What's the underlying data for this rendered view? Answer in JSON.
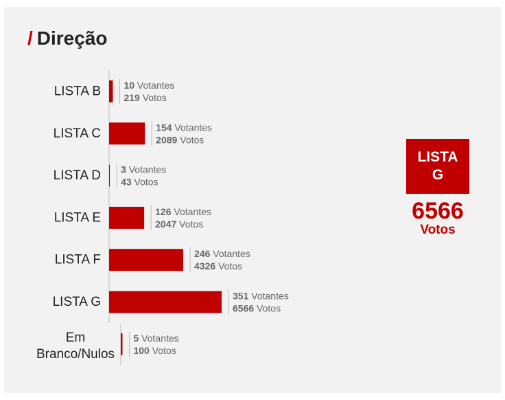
{
  "title": "Direção",
  "title_prefix": "/",
  "colors": {
    "bar": "#c00000",
    "accent": "#cc0000",
    "label": "#222222",
    "annotation": "#666666",
    "background": "#f2f2f2"
  },
  "chart_data": {
    "type": "bar",
    "orientation": "horizontal",
    "categories": [
      "LISTA B",
      "LISTA C",
      "LISTA D",
      "LISTA E",
      "LISTA F",
      "LISTA G",
      "Em Branco/Nulos"
    ],
    "category_lines": [
      [
        "LISTA B"
      ],
      [
        "LISTA C"
      ],
      [
        "LISTA D"
      ],
      [
        "LISTA E"
      ],
      [
        "LISTA F"
      ],
      [
        "LISTA G"
      ],
      [
        "Em",
        "Branco/Nulos"
      ]
    ],
    "voters": [
      10,
      154,
      3,
      126,
      246,
      351,
      5
    ],
    "values": [
      219,
      2089,
      43,
      2047,
      4326,
      6566,
      100
    ],
    "voters_unit": "Votantes",
    "votes_unit": "Votos",
    "xlim": [
      0,
      6566
    ],
    "grid": false,
    "legend": "none"
  },
  "winner": {
    "label": "LISTA G",
    "votes": "6566",
    "unit": "Votos"
  }
}
